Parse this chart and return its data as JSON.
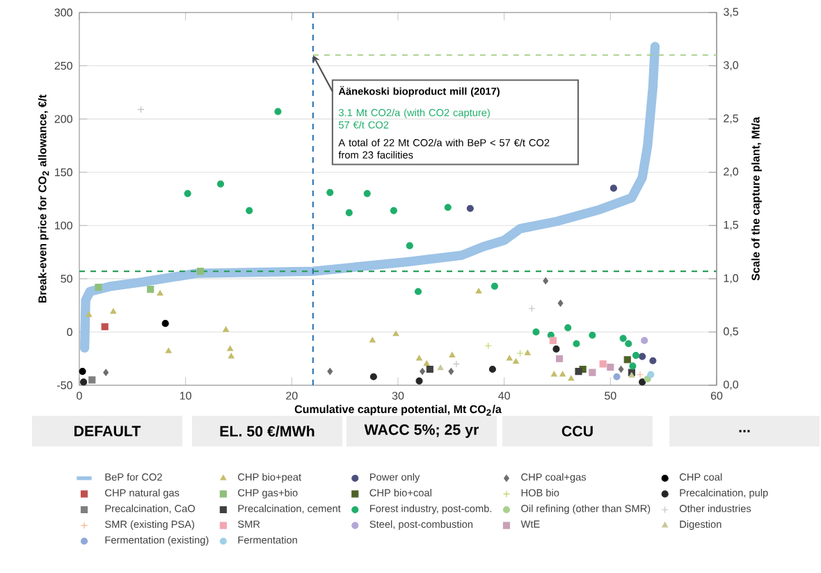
{
  "chart_data": {
    "type": "scatter",
    "xlabel": "Cumulative capture potential, Mt CO$_{2}$/a",
    "ylabel": "Break-even price for CO$_{2}$ allowance, €/t",
    "y2label": "Scale of the capture plant, Mt/a",
    "xlim": [
      0,
      60
    ],
    "xticks": [
      0,
      10,
      20,
      30,
      40,
      50,
      60
    ],
    "ylim": [
      -50,
      300
    ],
    "yticks": [
      -50,
      0,
      50,
      100,
      150,
      200,
      250,
      300
    ],
    "y2lim": [
      0,
      3.5
    ],
    "y2ticks": [
      {
        "value": 0,
        "label": "0,0"
      },
      {
        "value": 0.5,
        "label": "0,5"
      },
      {
        "value": 1,
        "label": "1,0"
      },
      {
        "value": 1.5,
        "label": "1,5"
      },
      {
        "value": 2,
        "label": "2,0"
      },
      {
        "value": 2.5,
        "label": "2,5"
      },
      {
        "value": 3,
        "label": "3,0"
      },
      {
        "value": 3.5,
        "label": "3,5"
      }
    ],
    "grid": "y",
    "legend": "bottom",
    "ref_lines": [
      {
        "axis": "y",
        "value": 57,
        "color": "#2ca05a",
        "line_style": "dashed"
      },
      {
        "axis": "x",
        "value": 22,
        "color": "#2f75b5",
        "line_style": "dashed"
      },
      {
        "axis": "y2",
        "value": 3.1,
        "color": "#a9d18e",
        "line_style": "dashed"
      }
    ],
    "annotations": [
      {
        "text": "Äänekoski bioproduct mill (2017)",
        "x": 22,
        "y": 260
      },
      "3.1 Mt CO2/a (with CO2 capture)",
      "57 €/t CO2",
      "A total of 22 Mt CO2/a with BeP < 57 €/t CO2 from 23 facilities",
      "DEFAULT",
      "EL. 50 €/MWh",
      "WACC 5%; 25 yr",
      "CCU",
      "..."
    ],
    "series": [
      {
        "name": "BeP for CO2",
        "type": "line",
        "color": "#9dc3e6",
        "x": [
          0.5,
          0.6,
          1,
          3,
          6,
          11,
          22,
          25,
          31,
          36,
          38,
          40,
          41.5,
          45,
          49,
          52,
          53,
          53.5,
          54,
          54.2
        ],
        "values": [
          -15,
          30,
          38,
          43,
          47,
          55,
          57,
          60,
          66,
          72,
          80,
          86,
          97,
          104,
          115,
          126,
          145,
          175,
          230,
          268
        ]
      },
      {
        "name": "CHP bio+peat",
        "axis": "y2",
        "marker": "triangle",
        "color": "#c4bd6a",
        "x": [
          0.9,
          3.2,
          7.6,
          8.4,
          13.8,
          14.2,
          14.3,
          27.6,
          29.8,
          32.0,
          32.7,
          35.1,
          37.6,
          40.5,
          41.1,
          42.2,
          44.7,
          45.5,
          46.3
        ],
        "values": [
          0.66,
          0.69,
          0.86,
          0.32,
          0.52,
          0.34,
          0.27,
          0.42,
          0.48,
          0.25,
          0.2,
          0.28,
          0.88,
          0.25,
          0.22,
          0.3,
          0.1,
          0.1,
          0.06
        ]
      },
      {
        "name": "Power only",
        "axis": "y2",
        "marker": "circle",
        "color": "#4b4f7c",
        "x": [
          36.8,
          50.3,
          53.0,
          54.0
        ],
        "values": [
          1.66,
          1.85,
          0.27,
          0.23
        ]
      },
      {
        "name": "CHP coal+gas",
        "axis": "y2",
        "marker": "diamond",
        "color": "#6d6d6d",
        "x": [
          2.5,
          23.6,
          32.3,
          35.0,
          43.9,
          45.3,
          51.0
        ],
        "values": [
          0.12,
          0.13,
          0.13,
          0.13,
          0.98,
          0.77,
          0.15
        ]
      },
      {
        "name": "CHP coal",
        "axis": "y2",
        "marker": "circle",
        "color": "#000000",
        "x": [
          0.3,
          8.1
        ],
        "values": [
          0.13,
          0.58
        ]
      },
      {
        "name": "CHP natural gas",
        "axis": "y2",
        "marker": "square",
        "color": "#c0504d",
        "x": [
          2.4
        ],
        "values": [
          0.55
        ]
      },
      {
        "name": "CHP gas+bio",
        "axis": "y2",
        "marker": "square",
        "color": "#8fbf7a",
        "x": [
          1.8,
          6.7,
          11.4
        ],
        "values": [
          0.92,
          0.9,
          1.07
        ]
      },
      {
        "name": "CHP bio+coal",
        "axis": "y2",
        "marker": "square",
        "color": "#4f6228",
        "x": [
          47.4,
          51.6
        ],
        "values": [
          0.15,
          0.24
        ]
      },
      {
        "name": "HOB bio",
        "axis": "y2",
        "marker": "cross",
        "color": "#b8d35f",
        "x": [
          38.5,
          41.5
        ],
        "values": [
          0.37,
          0.3
        ]
      },
      {
        "name": "Precalcination, pulp",
        "axis": "y2",
        "marker": "circle",
        "color": "#262626",
        "x": [
          0.4,
          27.7,
          32.0,
          38.9,
          44.9,
          53.0
        ],
        "values": [
          0.03,
          0.08,
          0.04,
          0.15,
          0.34,
          0.03
        ]
      },
      {
        "name": "Precalcination, CaO",
        "axis": "y2",
        "marker": "square",
        "color": "#7f7f7f",
        "x": [
          1.2
        ],
        "values": [
          0.05
        ]
      },
      {
        "name": "Precalcination, cement",
        "axis": "y2",
        "marker": "square",
        "color": "#404040",
        "x": [
          33.0,
          47.0,
          52.0
        ],
        "values": [
          0.15,
          0.13,
          0.12
        ]
      },
      {
        "name": "Forest industry, post-comb.",
        "axis": "y2",
        "marker": "circle",
        "color": "#1fae6b",
        "x": [
          10.2,
          13.3,
          16.0,
          18.7,
          23.6,
          25.4,
          27.1,
          29.6,
          31.1,
          31.9,
          34.7,
          39.1,
          43.0,
          44.4,
          46.0,
          46.8,
          48.3,
          51.2,
          51.7,
          52.4,
          52.1
        ],
        "values": [
          1.8,
          1.89,
          1.64,
          2.57,
          1.81,
          1.62,
          1.8,
          1.64,
          1.31,
          0.88,
          1.67,
          0.93,
          0.5,
          0.47,
          0.54,
          0.39,
          0.47,
          0.44,
          0.39,
          0.28,
          0.18
        ]
      },
      {
        "name": "Oil refining (other than SMR)",
        "axis": "y2",
        "marker": "circle",
        "color": "#a8d08d",
        "x": [
          53.5
        ],
        "values": [
          0.06
        ]
      },
      {
        "name": "Other industries",
        "axis": "y2",
        "marker": "cross",
        "color": "#bfbfbf",
        "x": [
          5.8,
          42.6,
          35.5
        ],
        "values": [
          2.59,
          0.72,
          0.2
        ]
      },
      {
        "name": "SMR (existing PSA)",
        "axis": "y2",
        "marker": "cross",
        "color": "#f4b183",
        "x": [
          52.8
        ],
        "values": [
          0.1
        ]
      },
      {
        "name": "SMR",
        "axis": "y2",
        "marker": "square",
        "color": "#f2a7b0",
        "x": [
          44.6,
          49.3
        ],
        "values": [
          0.42,
          0.2
        ]
      },
      {
        "name": "Steel, post-combustion",
        "axis": "y2",
        "marker": "circle",
        "color": "#b4a7d6",
        "x": [
          53.2
        ],
        "values": [
          0.42
        ]
      },
      {
        "name": "WtE",
        "axis": "y2",
        "marker": "square",
        "color": "#c9a0b8",
        "x": [
          45.2,
          48.3,
          50.0
        ],
        "values": [
          0.25,
          0.12,
          0.17
        ]
      },
      {
        "name": "Digestion",
        "axis": "y2",
        "marker": "triangle",
        "color": "#c8c89a",
        "x": [
          34.0,
          52.0
        ],
        "values": [
          0.16,
          0.09
        ]
      },
      {
        "name": "Fermentation (existing)",
        "axis": "y2",
        "marker": "circle",
        "color": "#8fa8d8",
        "x": [
          50.6
        ],
        "values": [
          0.08
        ]
      },
      {
        "name": "Fermentation",
        "axis": "y2",
        "marker": "circle",
        "color": "#9fd0e8",
        "x": [
          53.8
        ],
        "values": [
          0.1
        ]
      }
    ]
  }
}
